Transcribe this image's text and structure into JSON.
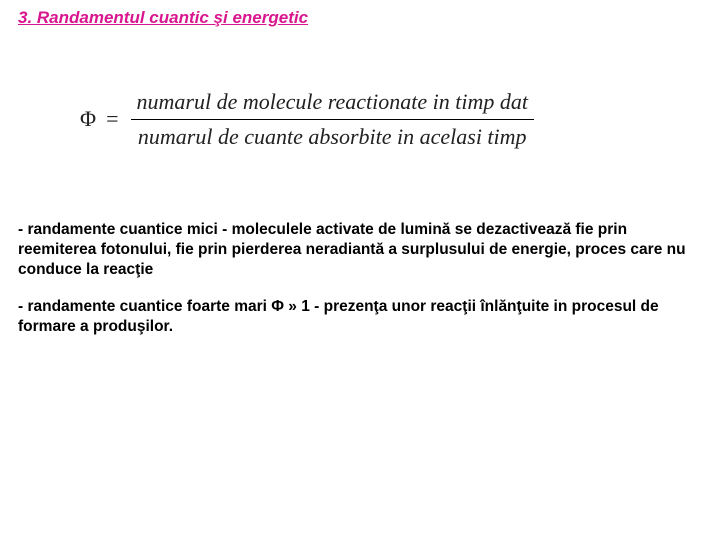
{
  "title": "3. Randamentul cuantic şi energetic",
  "formula": {
    "symbol": "Φ",
    "equals": "=",
    "numerator": "numarul de molecule reactionate in timp dat",
    "denominator": "numarul de cuante absorbite in acelasi timp"
  },
  "para1": "- randamente cuantice mici - moleculele activate de lumină se dezactivează fie prin reemiterea fotonului, fie prin pierderea neradiantă a surplusului de energie, proces care nu conduce la reacţie",
  "para2": "- randamente cuantice foarte mari Φ » 1 - prezenţa unor reacţii înlănţuite in procesul de formare a produşilor.",
  "colors": {
    "title_color": "#d8178e",
    "text_color": "#000000",
    "background": "#ffffff"
  },
  "fonts": {
    "title_size": 17,
    "body_size": 15.5,
    "formula_size": 22
  }
}
